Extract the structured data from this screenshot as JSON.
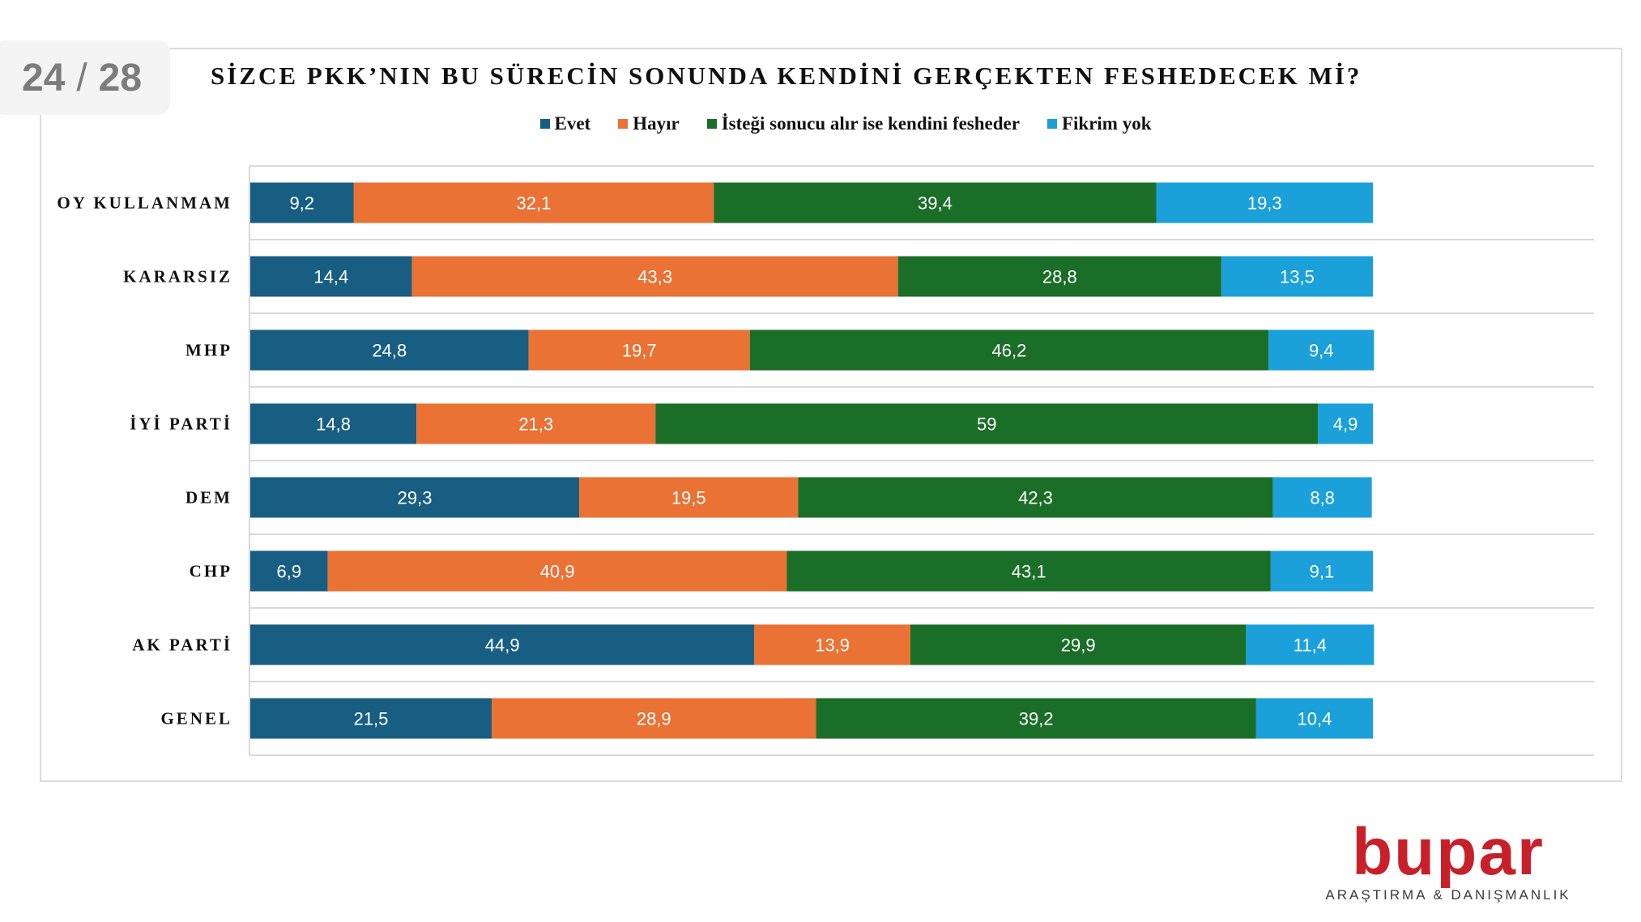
{
  "page_indicator": {
    "current": "24",
    "total": "28"
  },
  "logo": {
    "name": "bupar",
    "tagline": "ARAŞTIRMA & DANIŞMANLIK"
  },
  "colors": {
    "Evet": "#185e82",
    "Hayır": "#e97234",
    "İsteği sonucu alır ise kendini fesheder": "#1b6e27",
    "Fikrim yok": "#1ba0d9",
    "gridline": "#d9d9d9",
    "logo": "#c8202a"
  },
  "chart_data": {
    "type": "bar",
    "orientation": "horizontal",
    "stacked": true,
    "title": "SİZCE PKK’NIN BU SÜRECİN SONUNDA KENDİNİ GERÇEKTEN FESHEDECEK Mİ?",
    "legend_position": "top",
    "categories": [
      "OY KULLANMAM",
      "KARARSIZ",
      "MHP",
      "İYİ PARTİ",
      "DEM",
      "CHP",
      "AK PARTİ",
      "GENEL"
    ],
    "series": [
      {
        "name": "Evet",
        "values": [
          9.2,
          14.4,
          24.8,
          14.8,
          29.3,
          6.9,
          44.9,
          21.5
        ],
        "labels": [
          "9,2",
          "14,4",
          "24,8",
          "14,8",
          "29,3",
          "6,9",
          "44,9",
          "21,5"
        ]
      },
      {
        "name": "Hayır",
        "values": [
          32.1,
          43.3,
          19.7,
          21.3,
          19.5,
          40.9,
          13.9,
          28.9
        ],
        "labels": [
          "32,1",
          "43,3",
          "19,7",
          "21,3",
          "19,5",
          "40,9",
          "13,9",
          "28,9"
        ]
      },
      {
        "name": "İsteği sonucu alır ise kendini fesheder",
        "values": [
          39.4,
          28.8,
          46.2,
          59,
          42.3,
          43.1,
          29.9,
          39.2
        ],
        "labels": [
          "39,4",
          "28,8",
          "46,2",
          "59",
          "42,3",
          "43,1",
          "29,9",
          "39,2"
        ]
      },
      {
        "name": "Fikrim yok",
        "values": [
          19.3,
          13.5,
          9.4,
          4.9,
          8.8,
          9.1,
          11.4,
          10.4
        ],
        "labels": [
          "19,3",
          "13,5",
          "9,4",
          "4,9",
          "8,8",
          "9,1",
          "11,4",
          "10,4"
        ]
      }
    ],
    "xlim": [
      0,
      100
    ],
    "grid": true
  }
}
